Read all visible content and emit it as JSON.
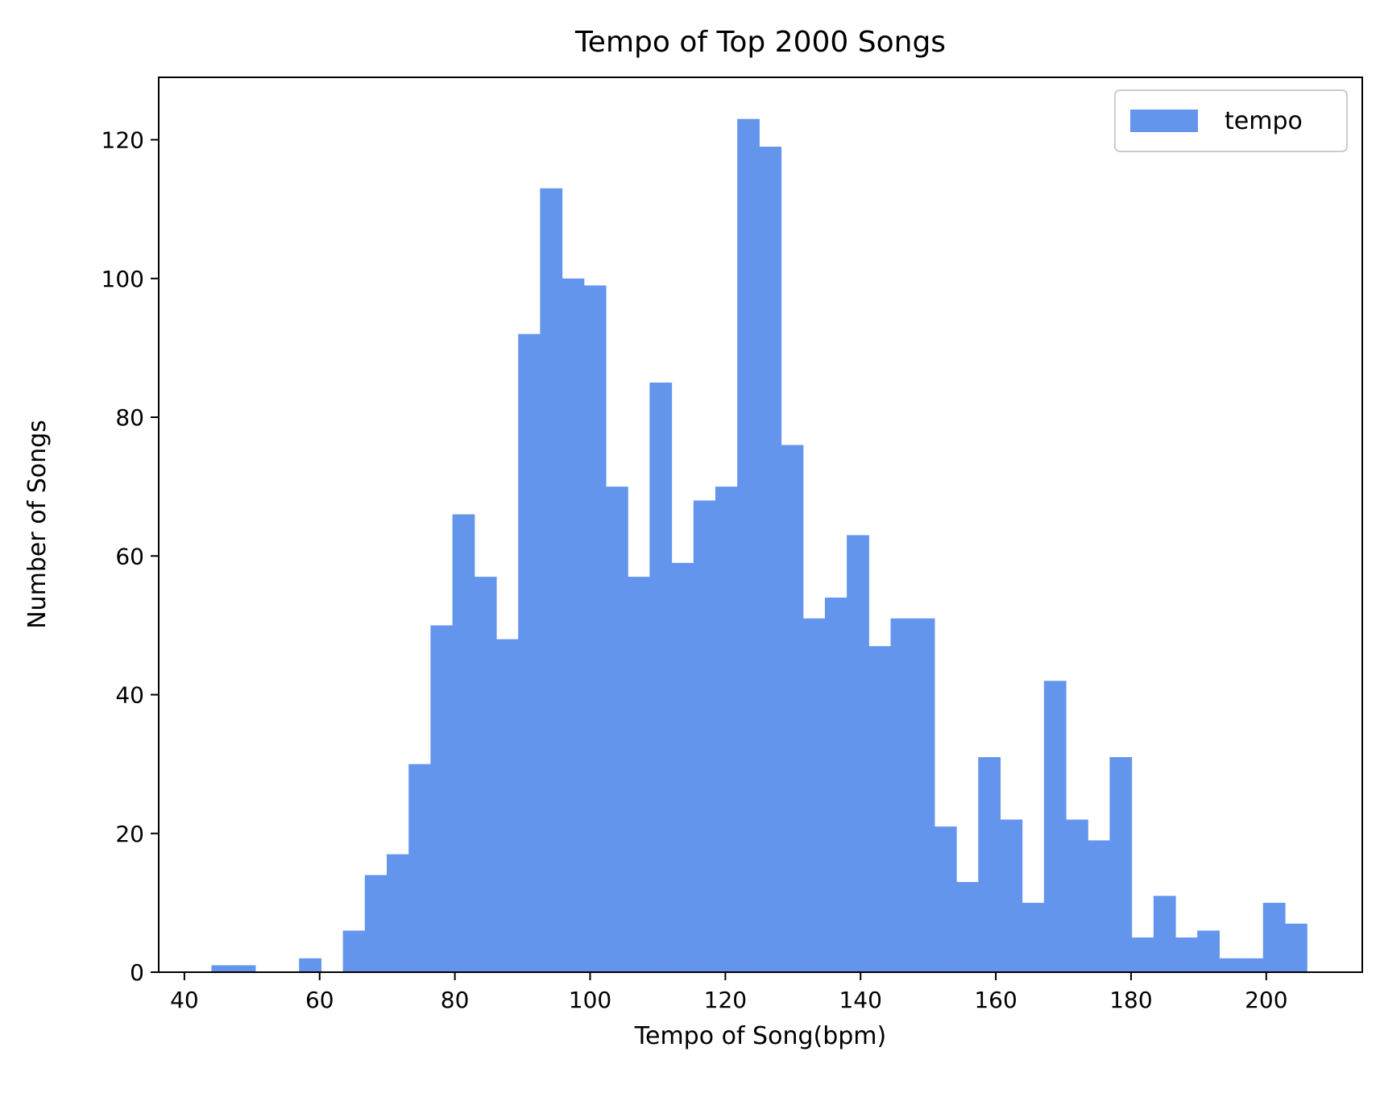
{
  "chart_data": {
    "type": "bar",
    "subtype": "histogram",
    "title": "Tempo of Top 2000 Songs",
    "xlabel": "Tempo of Song(bpm)",
    "ylabel": "Number of Songs",
    "xlim": [
      36.2,
      214.2
    ],
    "ylim": [
      0,
      129
    ],
    "x_ticks": [
      40,
      60,
      80,
      100,
      120,
      140,
      160,
      180,
      200
    ],
    "y_ticks": [
      0,
      20,
      40,
      60,
      80,
      100,
      120
    ],
    "bin_start": 44,
    "bin_width": 3.24,
    "series": [
      {
        "name": "tempo",
        "color": "#6495ED",
        "values": [
          1,
          1,
          0,
          0,
          2,
          0,
          6,
          14,
          17,
          30,
          50,
          66,
          57,
          48,
          92,
          113,
          100,
          99,
          70,
          57,
          85,
          59,
          68,
          70,
          123,
          119,
          76,
          51,
          54,
          63,
          47,
          51,
          51,
          21,
          13,
          31,
          22,
          10,
          42,
          22,
          19,
          31,
          5,
          11,
          5,
          6,
          2,
          2,
          10,
          7
        ]
      }
    ],
    "legend": {
      "position": "upper-right",
      "entries": [
        "tempo"
      ]
    },
    "grid": false
  }
}
